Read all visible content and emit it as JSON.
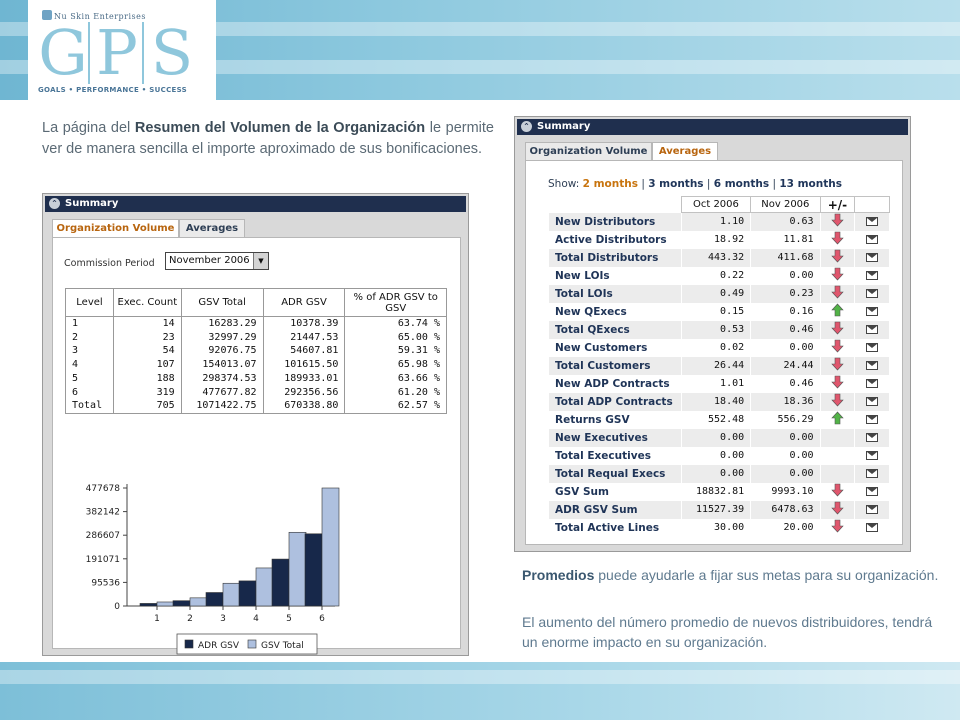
{
  "header": {
    "brand": "Nu Skin Enterprises",
    "logo_letters": [
      "G",
      "P",
      "S"
    ],
    "tagline": "GOALS • PERFORMANCE • SUCCESS"
  },
  "intro": {
    "pre": "La página del ",
    "bold1": "Resumen del Volumen de la Organización",
    "post": " le permite ver de manera sencilla el importe aproximado de sus bonificaciones."
  },
  "left_panel": {
    "title": "Summary",
    "tabs": [
      "Organization Volume",
      "Averages"
    ],
    "active_tab": 0,
    "commission_label": "Commission Period",
    "commission_value": "November 2006",
    "table": {
      "headers": [
        "Level",
        "Exec. Count",
        "GSV Total",
        "ADR GSV",
        "% of ADR GSV to GSV"
      ],
      "rows": [
        [
          "1",
          "14",
          "16283.29",
          "10378.39",
          "63.74 %"
        ],
        [
          "2",
          "23",
          "32997.29",
          "21447.53",
          "65.00 %"
        ],
        [
          "3",
          "54",
          "92076.75",
          "54607.81",
          "59.31 %"
        ],
        [
          "4",
          "107",
          "154013.07",
          "101615.50",
          "65.98 %"
        ],
        [
          "5",
          "188",
          "298374.53",
          "189933.01",
          "63.66 %"
        ],
        [
          "6",
          "319",
          "477677.82",
          "292356.56",
          "61.20 %"
        ],
        [
          "Total",
          "705",
          "1071422.75",
          "670338.80",
          "62.57 %"
        ]
      ]
    }
  },
  "chart_data": {
    "type": "bar",
    "categories": [
      "1",
      "2",
      "3",
      "4",
      "5",
      "6"
    ],
    "series": [
      {
        "name": "ADR GSV",
        "values": [
          10378.39,
          21447.53,
          54607.81,
          101615.5,
          189933.01,
          292356.56
        ],
        "color": "#17284a"
      },
      {
        "name": "GSV Total",
        "values": [
          16283.29,
          32997.29,
          92076.75,
          154013.07,
          298374.53,
          477677.82
        ],
        "color": "#aec0df"
      }
    ],
    "yticks": [
      "0",
      "95536",
      "191071",
      "286607",
      "382142",
      "477678"
    ],
    "ylim": [
      0,
      477678
    ],
    "legend": "bottom",
    "grid": false
  },
  "right_panel": {
    "title": "Summary",
    "tabs": [
      "Organization Volume",
      "Averages"
    ],
    "active_tab": 1,
    "show_label": "Show:",
    "show_options": [
      "2 months",
      "3 months",
      "6 months",
      "13 months"
    ],
    "show_active": 0,
    "headers": [
      "",
      "Oct 2006",
      "Nov 2006",
      "+/-",
      ""
    ],
    "rows": [
      {
        "label": "New Distributors",
        "oct": "1.10",
        "nov": "0.63",
        "trend": "down"
      },
      {
        "label": "Active Distributors",
        "oct": "18.92",
        "nov": "11.81",
        "trend": "down"
      },
      {
        "label": "Total Distributors",
        "oct": "443.32",
        "nov": "411.68",
        "trend": "down"
      },
      {
        "label": "New LOIs",
        "oct": "0.22",
        "nov": "0.00",
        "trend": "down"
      },
      {
        "label": "Total LOIs",
        "oct": "0.49",
        "nov": "0.23",
        "trend": "down"
      },
      {
        "label": "New QExecs",
        "oct": "0.15",
        "nov": "0.16",
        "trend": "up"
      },
      {
        "label": "Total QExecs",
        "oct": "0.53",
        "nov": "0.46",
        "trend": "down"
      },
      {
        "label": "New Customers",
        "oct": "0.02",
        "nov": "0.00",
        "trend": "down"
      },
      {
        "label": "Total Customers",
        "oct": "26.44",
        "nov": "24.44",
        "trend": "down"
      },
      {
        "label": "New ADP Contracts",
        "oct": "1.01",
        "nov": "0.46",
        "trend": "down"
      },
      {
        "label": "Total ADP Contracts",
        "oct": "18.40",
        "nov": "18.36",
        "trend": "down"
      },
      {
        "label": "Returns GSV",
        "oct": "552.48",
        "nov": "556.29",
        "trend": "up"
      },
      {
        "label": "New Executives",
        "oct": "0.00",
        "nov": "0.00",
        "trend": "none"
      },
      {
        "label": "Total Executives",
        "oct": "0.00",
        "nov": "0.00",
        "trend": "none"
      },
      {
        "label": "Total Requal Execs",
        "oct": "0.00",
        "nov": "0.00",
        "trend": "none"
      },
      {
        "label": "GSV Sum",
        "oct": "18832.81",
        "nov": "9993.10",
        "trend": "down"
      },
      {
        "label": "ADR GSV Sum",
        "oct": "11527.39",
        "nov": "6478.63",
        "trend": "down"
      },
      {
        "label": "Total Active Lines",
        "oct": "30.00",
        "nov": "20.00",
        "trend": "down"
      }
    ]
  },
  "promedios": {
    "bold": "Promedios",
    "rest": " puede ayudarle a fijar sus metas para su organización."
  },
  "aumento": "El aumento del número promedio de nuevos distribuidores, tendrá un enorme impacto en su organización.",
  "colors": {
    "title_bar": "#1f2f4e",
    "active_tab_text": "#b8650f",
    "arrow_down": "#e0566d",
    "arrow_up": "#52b347"
  }
}
